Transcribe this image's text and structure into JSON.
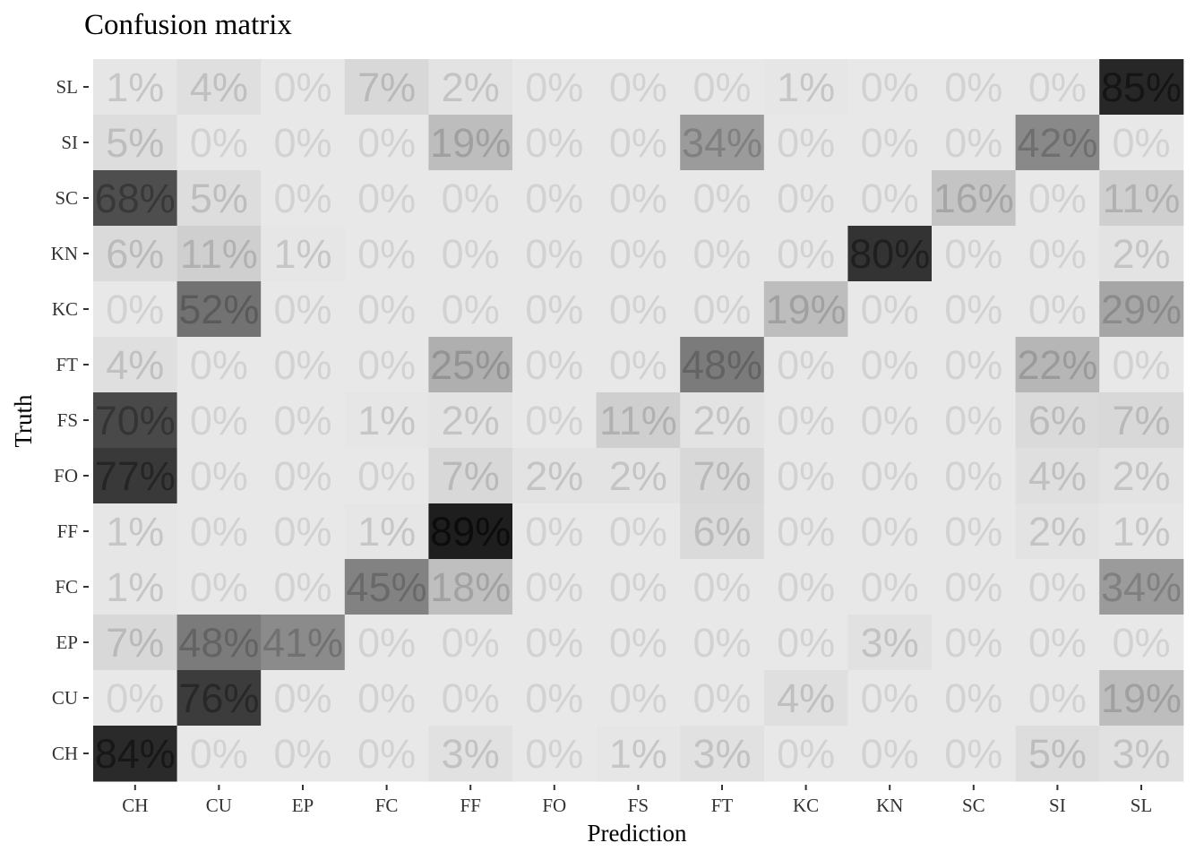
{
  "chart_data": {
    "type": "heatmap",
    "title": "Confusion matrix",
    "xlabel": "Prediction",
    "ylabel": "Truth",
    "x_categories": [
      "CH",
      "CU",
      "EP",
      "FC",
      "FF",
      "FO",
      "FS",
      "FT",
      "KC",
      "KN",
      "SC",
      "SI",
      "SL"
    ],
    "y_categories": [
      "CH",
      "CU",
      "EP",
      "FC",
      "FF",
      "FO",
      "FS",
      "FT",
      "KC",
      "KN",
      "SC",
      "SI",
      "SL"
    ],
    "value_unit": "%",
    "rows": [
      {
        "truth": "SL",
        "values": [
          1,
          4,
          0,
          7,
          2,
          0,
          0,
          0,
          1,
          0,
          0,
          0,
          85
        ]
      },
      {
        "truth": "SI",
        "values": [
          5,
          0,
          0,
          0,
          19,
          0,
          0,
          34,
          0,
          0,
          0,
          42,
          0
        ]
      },
      {
        "truth": "SC",
        "values": [
          68,
          5,
          0,
          0,
          0,
          0,
          0,
          0,
          0,
          0,
          16,
          0,
          11
        ]
      },
      {
        "truth": "KN",
        "values": [
          6,
          11,
          1,
          0,
          0,
          0,
          0,
          0,
          0,
          80,
          0,
          0,
          2
        ]
      },
      {
        "truth": "KC",
        "values": [
          0,
          52,
          0,
          0,
          0,
          0,
          0,
          0,
          19,
          0,
          0,
          0,
          29
        ]
      },
      {
        "truth": "FT",
        "values": [
          4,
          0,
          0,
          0,
          25,
          0,
          0,
          48,
          0,
          0,
          0,
          22,
          0
        ]
      },
      {
        "truth": "FS",
        "values": [
          70,
          0,
          0,
          1,
          2,
          0,
          11,
          2,
          0,
          0,
          0,
          6,
          7
        ]
      },
      {
        "truth": "FO",
        "values": [
          77,
          0,
          0,
          0,
          7,
          2,
          2,
          7,
          0,
          0,
          0,
          4,
          2
        ]
      },
      {
        "truth": "FF",
        "values": [
          1,
          0,
          0,
          1,
          89,
          0,
          0,
          6,
          0,
          0,
          0,
          2,
          1
        ]
      },
      {
        "truth": "FC",
        "values": [
          1,
          0,
          0,
          45,
          18,
          0,
          0,
          0,
          0,
          0,
          0,
          0,
          34
        ]
      },
      {
        "truth": "EP",
        "values": [
          7,
          48,
          41,
          0,
          0,
          0,
          0,
          0,
          0,
          3,
          0,
          0,
          0
        ]
      },
      {
        "truth": "CU",
        "values": [
          0,
          76,
          0,
          0,
          0,
          0,
          0,
          0,
          4,
          0,
          0,
          0,
          19
        ]
      },
      {
        "truth": "CH",
        "values": [
          84,
          0,
          0,
          0,
          3,
          0,
          1,
          3,
          0,
          0,
          0,
          5,
          3
        ]
      }
    ],
    "legend": "none",
    "grid": false
  }
}
